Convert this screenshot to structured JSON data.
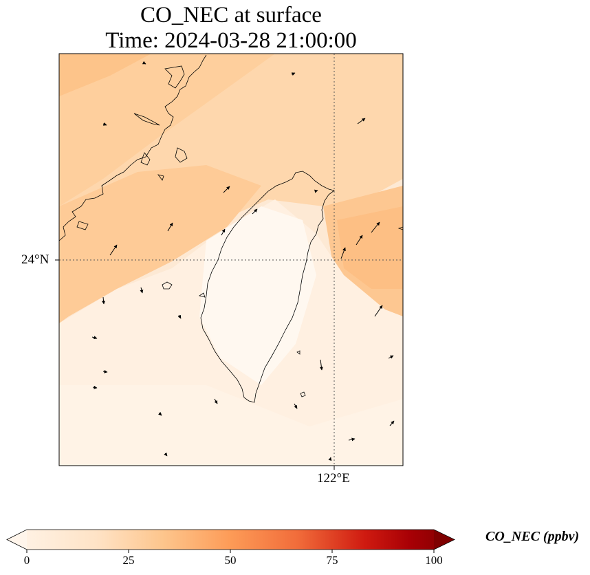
{
  "title_line1": "CO_NEC at surface",
  "title_line2": "Time: 2024-03-28 21:00:00",
  "map": {
    "lat_gridline": "24°N",
    "lon_gridline": "122°E"
  },
  "colorbar": {
    "title": "CO_NEC (ppbv)",
    "ticks": [
      "0",
      "25",
      "50",
      "75",
      "100"
    ],
    "colormap": "Oranges",
    "colors": [
      "#fff5eb",
      "#fdd49e",
      "#fdae6b",
      "#f16913",
      "#c0000b",
      "#7f0000"
    ]
  }
}
